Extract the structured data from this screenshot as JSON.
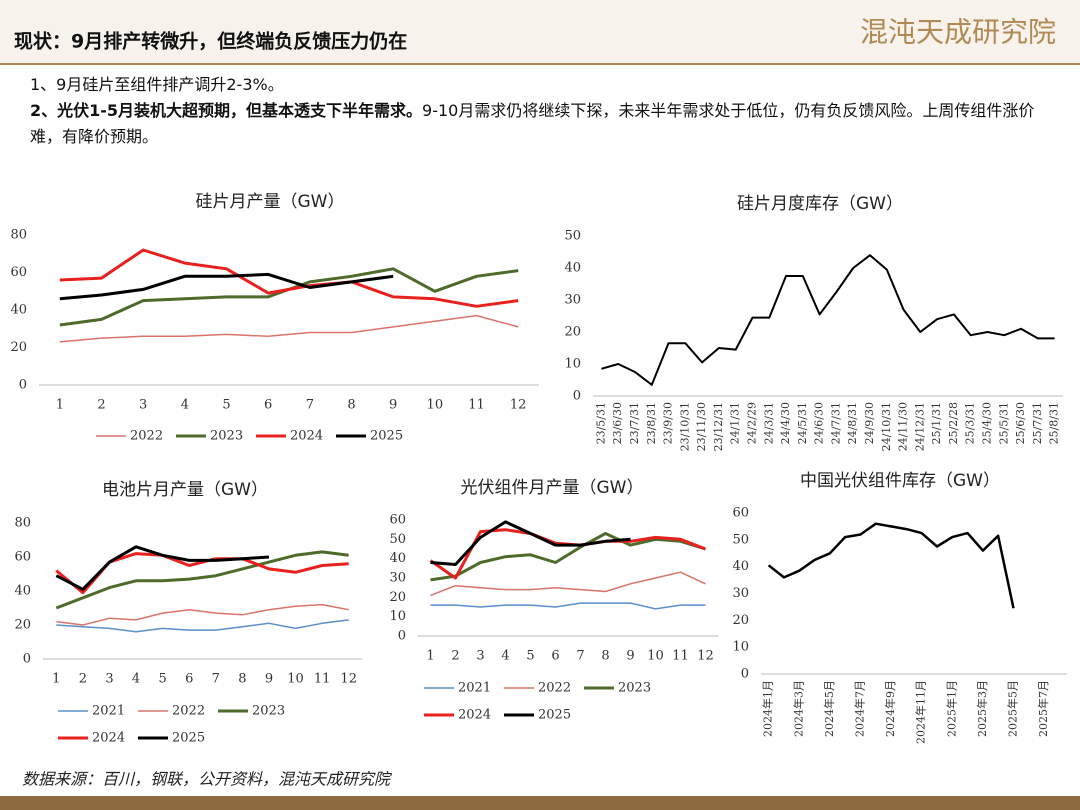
{
  "header": {
    "title": "现状：9月排产转微升，但终端负反馈压力仍在",
    "logo": "混沌天成研究院"
  },
  "bullets": [
    {
      "text": "1、9月硅片至组件排产调升2-3%。"
    },
    {
      "bold": "2、光伏1-5月装机大超预期，但基本透支下半年需求。",
      "text": "9-10月需求仍将继续下探，未来半年需求处于低位，仍有负反馈风险。上周传组件涨价难，有降价预期。"
    }
  ],
  "source": "数据来源：百川，钢联，公开资料，混沌天成研究院",
  "chart_data": [
    {
      "type": "line",
      "title": "硅片月产量（GW）",
      "categories": [
        "1",
        "2",
        "3",
        "4",
        "5",
        "6",
        "7",
        "8",
        "9",
        "10",
        "11",
        "12"
      ],
      "ylim": [
        0,
        80
      ],
      "yticks": [
        0,
        20,
        40,
        60,
        80
      ],
      "grid": false,
      "legend": "bottom",
      "series": [
        {
          "name": "2022",
          "color": "#d9736b",
          "width": 1.5,
          "values": [
            23,
            25,
            26,
            26,
            27,
            26,
            28,
            28,
            31,
            34,
            37,
            31
          ]
        },
        {
          "name": "2023",
          "color": "#4e6b2c",
          "width": 3,
          "values": [
            32,
            35,
            45,
            46,
            47,
            47,
            55,
            58,
            62,
            50,
            58,
            61
          ]
        },
        {
          "name": "2024",
          "color": "#e8211f",
          "width": 3,
          "values": [
            56,
            57,
            72,
            65,
            62,
            49,
            53,
            55,
            47,
            46,
            42,
            45
          ]
        },
        {
          "name": "2025",
          "color": "#000000",
          "width": 3,
          "values": [
            46,
            48,
            51,
            58,
            58,
            59,
            52,
            55,
            58,
            null,
            null,
            null
          ]
        }
      ]
    },
    {
      "type": "line",
      "title": "硅片月度库存（GW）",
      "categories": [
        "23/5/31",
        "23/6/30",
        "23/7/31",
        "23/8/31",
        "23/9/30",
        "23/10/31",
        "23/11/30",
        "23/12/31",
        "24/1/31",
        "24/2/29",
        "24/3/31",
        "24/4/30",
        "24/5/31",
        "24/6/30",
        "24/7/31",
        "24/8/31",
        "24/9/30",
        "24/10/31",
        "24/11/30",
        "24/12/31",
        "25/1/31",
        "25/2/28",
        "25/3/31",
        "25/4/30",
        "25/5/31",
        "25/6/30",
        "25/7/31",
        "25/8/31"
      ],
      "ylim": [
        0,
        50
      ],
      "yticks": [
        0,
        10,
        20,
        30,
        40,
        50
      ],
      "grid": false,
      "color": "#000000",
      "width": 2,
      "values": [
        8.5,
        10,
        7.5,
        3.5,
        16.5,
        16.5,
        10.5,
        15,
        14.5,
        24.5,
        24.5,
        37.5,
        37.5,
        25.5,
        32.5,
        40,
        44,
        39.5,
        27,
        20,
        24,
        25.5,
        19,
        20,
        19,
        21,
        18,
        18
      ]
    },
    {
      "type": "line",
      "title": "电池片月产量（GW）",
      "categories": [
        "1",
        "2",
        "3",
        "4",
        "5",
        "6",
        "7",
        "8",
        "9",
        "10",
        "11",
        "12"
      ],
      "ylim": [
        0,
        80
      ],
      "yticks": [
        0,
        20,
        40,
        60,
        80
      ],
      "grid": false,
      "legend": "bottom",
      "series": [
        {
          "name": "2021",
          "color": "#5b8fc9",
          "width": 1.5,
          "values": [
            20,
            19,
            18,
            16,
            18,
            17,
            17,
            19,
            21,
            18,
            21,
            23
          ]
        },
        {
          "name": "2022",
          "color": "#d9736b",
          "width": 1.5,
          "values": [
            22,
            20,
            24,
            23,
            27,
            29,
            27,
            26,
            29,
            31,
            32,
            29
          ]
        },
        {
          "name": "2023",
          "color": "#4e6b2c",
          "width": 3,
          "values": [
            30,
            36,
            42,
            46,
            46,
            47,
            49,
            53,
            57,
            61,
            63,
            61
          ]
        },
        {
          "name": "2024",
          "color": "#e8211f",
          "width": 3,
          "values": [
            52,
            39,
            57,
            62,
            61,
            55,
            59,
            59,
            53,
            51,
            55,
            56
          ]
        },
        {
          "name": "2025",
          "color": "#000000",
          "width": 3,
          "values": [
            49,
            41,
            57,
            66,
            61,
            58,
            58,
            59,
            60,
            null,
            null,
            null
          ]
        }
      ]
    },
    {
      "type": "line",
      "title": "光伏组件月产量（GW）",
      "categories": [
        "1",
        "2",
        "3",
        "4",
        "5",
        "6",
        "7",
        "8",
        "9",
        "10",
        "11",
        "12"
      ],
      "ylim": [
        0,
        60
      ],
      "yticks": [
        0,
        10,
        20,
        30,
        40,
        50,
        60
      ],
      "grid": false,
      "legend": "bottom",
      "series": [
        {
          "name": "2021",
          "color": "#5b8fc9",
          "width": 1.5,
          "values": [
            16,
            16,
            15,
            16,
            16,
            15,
            17,
            17,
            17,
            14,
            16,
            16
          ]
        },
        {
          "name": "2022",
          "color": "#d9736b",
          "width": 1.5,
          "values": [
            21,
            26,
            25,
            24,
            24,
            25,
            24,
            23,
            27,
            30,
            33,
            27
          ]
        },
        {
          "name": "2023",
          "color": "#4e6b2c",
          "width": 3,
          "values": [
            29,
            31,
            38,
            41,
            42,
            38,
            46,
            53,
            47,
            50,
            49,
            45
          ]
        },
        {
          "name": "2024",
          "color": "#e8211f",
          "width": 3,
          "values": [
            39,
            30,
            54,
            55,
            53,
            48,
            47,
            49,
            49,
            51,
            50,
            45
          ]
        },
        {
          "name": "2025",
          "color": "#000000",
          "width": 3,
          "values": [
            38,
            37,
            51,
            59,
            53,
            47,
            47,
            49,
            50,
            null,
            null,
            null
          ]
        }
      ]
    },
    {
      "type": "line",
      "title": "中国光伏组件库存（GW）",
      "categories": [
        "2024年1月",
        null,
        "2024年3月",
        null,
        "2024年5月",
        null,
        "2024年7月",
        null,
        "2024年9月",
        null,
        "2024年11月",
        null,
        "2025年1月",
        null,
        "2025年3月",
        null,
        "2025年5月",
        null,
        "2025年7月",
        null
      ],
      "ylim": [
        0,
        60
      ],
      "yticks": [
        0,
        10,
        20,
        30,
        40,
        50,
        60
      ],
      "grid": false,
      "color": "#000000",
      "width": 2.5,
      "values": [
        40.5,
        36,
        38.5,
        42.5,
        45,
        51,
        52,
        56,
        55,
        54,
        52.5,
        47.5,
        51,
        52.5,
        46,
        51.5,
        24.5,
        null,
        null,
        null
      ]
    }
  ]
}
